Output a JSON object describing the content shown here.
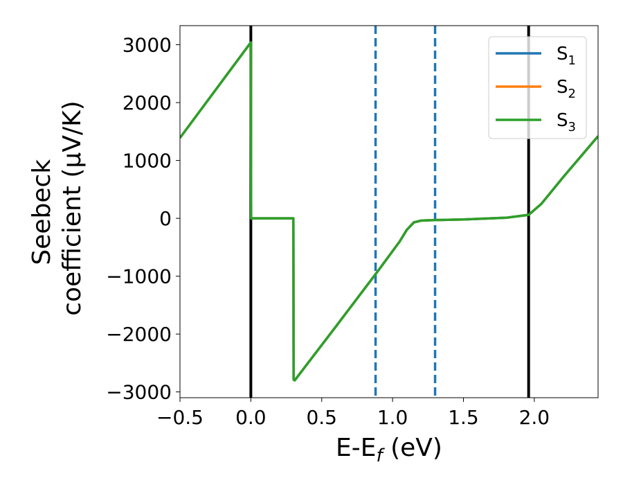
{
  "chart_data": {
    "type": "line",
    "xlabel": "E-E_f (eV)",
    "ylabel_line1": "Seebeck",
    "ylabel_line2": "coefficient  (μV/K)",
    "xlim": [
      -0.5,
      2.45
    ],
    "ylim": [
      -3100,
      3330
    ],
    "x_ticks": [
      -0.5,
      0.0,
      0.5,
      1.0,
      1.5,
      2.0
    ],
    "x_tick_labels": [
      "−0.5",
      "0.0",
      "0.5",
      "1.0",
      "1.5",
      "2.0"
    ],
    "y_ticks": [
      -3000,
      -2000,
      -1000,
      0,
      1000,
      2000,
      3000
    ],
    "y_tick_labels": [
      "−3000",
      "−2000",
      "−1000",
      "0",
      "1000",
      "2000",
      "3000"
    ],
    "grid": false,
    "legend_position": "top-right",
    "series": [
      {
        "name": "S1",
        "color": "#1f77b4",
        "x": [
          -0.5,
          0.0,
          0.002,
          0.3,
          0.302,
          0.31,
          0.6,
          0.9,
          1.05,
          1.1,
          1.15,
          1.2,
          1.3,
          1.5,
          1.8,
          1.96,
          2.05,
          2.2,
          2.45
        ],
        "y": [
          1390,
          3040,
          0,
          0,
          -2790,
          -2800,
          -1870,
          -900,
          -400,
          -200,
          -70,
          -40,
          -30,
          -20,
          10,
          60,
          250,
          700,
          1420
        ]
      },
      {
        "name": "S2",
        "color": "#ff7f0e",
        "x": [
          -0.5,
          0.0,
          0.002,
          0.3,
          0.302,
          0.31,
          0.6,
          0.9,
          1.05,
          1.1,
          1.15,
          1.2,
          1.3,
          1.5,
          1.8,
          1.96,
          2.05,
          2.2,
          2.45
        ],
        "y": [
          1390,
          3040,
          0,
          0,
          -2790,
          -2800,
          -1870,
          -900,
          -400,
          -200,
          -70,
          -40,
          -30,
          -20,
          10,
          60,
          250,
          700,
          1420
        ]
      },
      {
        "name": "S3",
        "color": "#2ca02c",
        "x": [
          -0.5,
          0.0,
          0.002,
          0.3,
          0.302,
          0.31,
          0.6,
          0.9,
          1.05,
          1.1,
          1.15,
          1.2,
          1.3,
          1.5,
          1.8,
          1.96,
          2.05,
          2.2,
          2.45
        ],
        "y": [
          1390,
          3040,
          0,
          0,
          -2790,
          -2800,
          -1870,
          -900,
          -400,
          -200,
          -70,
          -40,
          -30,
          -20,
          10,
          60,
          250,
          700,
          1420
        ]
      }
    ],
    "vertical_lines": [
      {
        "x": 0.0,
        "color": "#000000",
        "style": "solid"
      },
      {
        "x": 1.96,
        "color": "#000000",
        "style": "solid"
      },
      {
        "x": 0.88,
        "color": "#1f77b4",
        "style": "dashed"
      },
      {
        "x": 1.3,
        "color": "#1f77b4",
        "style": "dashed"
      }
    ],
    "legend": [
      {
        "base": "S",
        "sub": "1",
        "color": "#1f77b4"
      },
      {
        "base": "S",
        "sub": "2",
        "color": "#ff7f0e"
      },
      {
        "base": "S",
        "sub": "3",
        "color": "#2ca02c"
      }
    ]
  }
}
